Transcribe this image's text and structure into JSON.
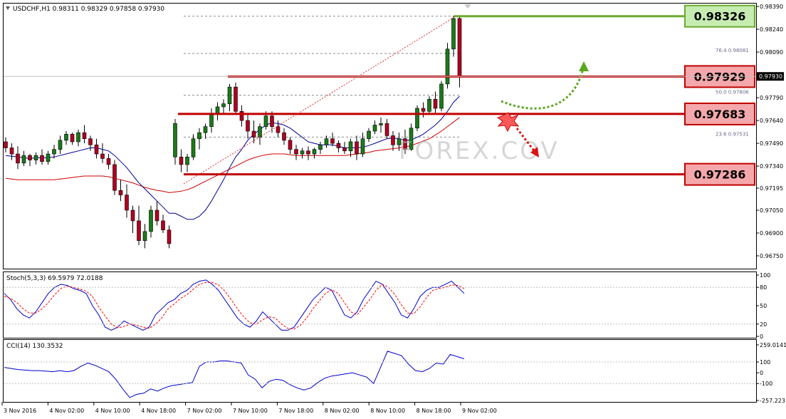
{
  "chart_data": [
    {
      "type": "candlestick",
      "header": "USDCHF,H1  0.98311 0.98329 0.97858 0.97930",
      "yaxis_ticks": [
        "0.98390",
        "0.98240",
        "0.98090",
        "0.97940",
        "0.97790",
        "0.97640",
        "0.97490",
        "0.97340",
        "0.97195",
        "0.97050",
        "0.96900",
        "0.96750"
      ],
      "ylim": [
        0.96675,
        0.98395
      ],
      "xaxis_ticks": [
        "3 Nov 2016",
        "4 Nov 02:00",
        "4 Nov 10:00",
        "4 Nov 18:00",
        "7 Nov 02:00",
        "7 Nov 10:00",
        "7 Nov 18:00",
        "8 Nov 02:00",
        "8 Nov 10:00",
        "8 Nov 18:00",
        "9 Nov 02:00"
      ],
      "current_price": "0.97930",
      "candles": [
        [
          0.975,
          0.9753,
          0.9743,
          0.9746
        ],
        [
          0.9746,
          0.9749,
          0.9738,
          0.9742
        ],
        [
          0.9742,
          0.9747,
          0.9732,
          0.9736
        ],
        [
          0.9736,
          0.9744,
          0.9734,
          0.9741
        ],
        [
          0.9741,
          0.9742,
          0.9734,
          0.9738
        ],
        [
          0.9738,
          0.9743,
          0.9735,
          0.9741
        ],
        [
          0.9741,
          0.9745,
          0.9735,
          0.9737
        ],
        [
          0.9737,
          0.9744,
          0.9735,
          0.9742
        ],
        [
          0.9742,
          0.9748,
          0.9739,
          0.9745
        ],
        [
          0.9745,
          0.9754,
          0.9742,
          0.9751
        ],
        [
          0.9751,
          0.9757,
          0.9748,
          0.9755
        ],
        [
          0.9755,
          0.9756,
          0.9748,
          0.975
        ],
        [
          0.975,
          0.9758,
          0.9747,
          0.9756
        ],
        [
          0.9756,
          0.9761,
          0.9749,
          0.9752
        ],
        [
          0.9752,
          0.9754,
          0.9744,
          0.9748
        ],
        [
          0.9748,
          0.9752,
          0.9739,
          0.9742
        ],
        [
          0.9742,
          0.9749,
          0.9736,
          0.9739
        ],
        [
          0.9739,
          0.9742,
          0.9732,
          0.9735
        ],
        [
          0.9735,
          0.9738,
          0.9715,
          0.9718
        ],
        [
          0.9718,
          0.9725,
          0.9711,
          0.9715
        ],
        [
          0.9715,
          0.9722,
          0.97,
          0.9705
        ],
        [
          0.9705,
          0.9708,
          0.969,
          0.9698
        ],
        [
          0.9698,
          0.9708,
          0.9682,
          0.9685
        ],
        [
          0.9685,
          0.9696,
          0.968,
          0.9691
        ],
        [
          0.9691,
          0.9708,
          0.9687,
          0.9705
        ],
        [
          0.9705,
          0.9711,
          0.9695,
          0.9698
        ],
        [
          0.9698,
          0.9702,
          0.969,
          0.9692
        ],
        [
          0.9692,
          0.9695,
          0.968,
          0.9683
        ],
        [
          0.974,
          0.9765,
          0.9735,
          0.9762
        ],
        [
          0.974,
          0.9745,
          0.973,
          0.9735
        ],
        [
          0.9735,
          0.9742,
          0.973,
          0.974
        ],
        [
          0.974,
          0.9755,
          0.9738,
          0.9752
        ],
        [
          0.9752,
          0.9759,
          0.9745,
          0.9756
        ],
        [
          0.9756,
          0.9762,
          0.9752,
          0.976
        ],
        [
          0.976,
          0.9772,
          0.9756,
          0.9768
        ],
        [
          0.9768,
          0.9776,
          0.9764,
          0.9773
        ],
        [
          0.9773,
          0.9778,
          0.9768,
          0.9775
        ],
        [
          0.9775,
          0.9788,
          0.977,
          0.9786
        ],
        [
          0.9786,
          0.9789,
          0.9768,
          0.977
        ],
        [
          0.977,
          0.9774,
          0.976,
          0.9764
        ],
        [
          0.9764,
          0.9768,
          0.9752,
          0.9757
        ],
        [
          0.9757,
          0.9764,
          0.9749,
          0.9753
        ],
        [
          0.9753,
          0.9762,
          0.9748,
          0.976
        ],
        [
          0.976,
          0.977,
          0.9758,
          0.9767
        ],
        [
          0.9767,
          0.977,
          0.9756,
          0.976
        ],
        [
          0.976,
          0.9764,
          0.9753,
          0.9756
        ],
        [
          0.9756,
          0.9759,
          0.9748,
          0.9751
        ],
        [
          0.9751,
          0.9753,
          0.9742,
          0.9745
        ],
        [
          0.9745,
          0.9748,
          0.9738,
          0.9742
        ],
        [
          0.9742,
          0.9746,
          0.9739,
          0.9744
        ],
        [
          0.9744,
          0.9747,
          0.9738,
          0.9742
        ],
        [
          0.9742,
          0.9746,
          0.9739,
          0.9745
        ],
        [
          0.9745,
          0.975,
          0.9742,
          0.9748
        ],
        [
          0.9748,
          0.9754,
          0.9746,
          0.9752
        ],
        [
          0.9752,
          0.9756,
          0.9747,
          0.9749
        ],
        [
          0.9749,
          0.9751,
          0.9743,
          0.9746
        ],
        [
          0.9746,
          0.975,
          0.9742,
          0.9744
        ],
        [
          0.9744,
          0.9752,
          0.974,
          0.975
        ],
        [
          0.975,
          0.9754,
          0.9738,
          0.9742
        ],
        [
          0.9742,
          0.9756,
          0.974,
          0.9752
        ],
        [
          0.9752,
          0.9759,
          0.975,
          0.9757
        ],
        [
          0.9757,
          0.9764,
          0.9755,
          0.9761
        ],
        [
          0.9761,
          0.9766,
          0.9756,
          0.9762
        ],
        [
          0.9762,
          0.9765,
          0.9752,
          0.9754
        ],
        [
          0.9754,
          0.9757,
          0.9744,
          0.9748
        ],
        [
          0.9748,
          0.9756,
          0.9744,
          0.9752
        ],
        [
          0.9752,
          0.9758,
          0.9742,
          0.9745
        ],
        [
          0.9745,
          0.9762,
          0.9744,
          0.9759
        ],
        [
          0.9759,
          0.9774,
          0.9757,
          0.9772
        ],
        [
          0.9772,
          0.9776,
          0.9766,
          0.977
        ],
        [
          0.977,
          0.978,
          0.9768,
          0.9778
        ],
        [
          0.9778,
          0.9783,
          0.9768,
          0.9772
        ],
        [
          0.9772,
          0.979,
          0.977,
          0.9788
        ],
        [
          0.9788,
          0.9815,
          0.9785,
          0.9811
        ],
        [
          0.9811,
          0.98329,
          0.9806,
          0.98311
        ],
        [
          0.98311,
          0.98329,
          0.97858,
          0.9793
        ]
      ],
      "blue_ma": [
        0.9741,
        0.97405,
        0.974,
        0.97395,
        0.9739,
        0.97395,
        0.97395,
        0.97395,
        0.974,
        0.9741,
        0.9742,
        0.9743,
        0.9744,
        0.9745,
        0.9746,
        0.9746,
        0.9745,
        0.9744,
        0.9741,
        0.9737,
        0.9733,
        0.9728,
        0.9723,
        0.9719,
        0.9715,
        0.9711,
        0.9707,
        0.9703,
        0.9703,
        0.9701,
        0.9699,
        0.9699,
        0.9701,
        0.9705,
        0.9711,
        0.9718,
        0.9725,
        0.9733,
        0.974,
        0.9745,
        0.9751,
        0.9755,
        0.9758,
        0.9761,
        0.97625,
        0.9762,
        0.9761,
        0.9759,
        0.9756,
        0.9753,
        0.975,
        0.9749,
        0.9748,
        0.9748,
        0.9748,
        0.9747,
        0.9746,
        0.9746,
        0.9746,
        0.97465,
        0.97475,
        0.9749,
        0.97505,
        0.9752,
        0.97525,
        0.9752,
        0.9751,
        0.9751,
        0.9753,
        0.9755,
        0.9758,
        0.9761,
        0.9765,
        0.977,
        0.9776,
        0.978
      ],
      "red_ma": [
        0.9726,
        0.97255,
        0.9725,
        0.9725,
        0.9725,
        0.9725,
        0.9725,
        0.9725,
        0.9725,
        0.97255,
        0.9726,
        0.97265,
        0.9727,
        0.97275,
        0.97275,
        0.97275,
        0.97275,
        0.9727,
        0.9726,
        0.9725,
        0.9724,
        0.9723,
        0.97215,
        0.972,
        0.9719,
        0.9718,
        0.97175,
        0.97165,
        0.9717,
        0.97175,
        0.97185,
        0.972,
        0.9722,
        0.9724,
        0.9726,
        0.9728,
        0.973,
        0.9732,
        0.9734,
        0.9736,
        0.9738,
        0.97395,
        0.97405,
        0.97415,
        0.9742,
        0.9742,
        0.9742,
        0.97415,
        0.9741,
        0.9741,
        0.9741,
        0.9741,
        0.9741,
        0.9741,
        0.9741,
        0.9741,
        0.9741,
        0.97415,
        0.9742,
        0.97425,
        0.9743,
        0.9744,
        0.97445,
        0.9745,
        0.97455,
        0.9746,
        0.97465,
        0.97475,
        0.9749,
        0.97505,
        0.9752,
        0.97545,
        0.9757,
        0.976,
        0.9763,
        0.9766
      ],
      "hlines": [
        {
          "value": 0.98326,
          "label": "0.98326",
          "color": "#6aaa30",
          "label_bg": "#c7ecb1"
        },
        {
          "value": 0.97929,
          "label": "0.97929",
          "color": "#c00000",
          "label_bg": "#f4a8ac"
        },
        {
          "value": 0.97683,
          "label": "0.97683",
          "color": "#c00000",
          "label_bg": "#f4a8ac"
        },
        {
          "value": 0.97286,
          "label": "0.97286",
          "color": "#c00000",
          "label_bg": "#f4a8ac"
        }
      ],
      "fibonacci": [
        {
          "level": "76.4",
          "price": "0.98081",
          "value": 0.98081
        },
        {
          "level": "50.0",
          "price": "0.97806",
          "value": 0.97806
        },
        {
          "level": "23.6",
          "price": "0.97531",
          "value": 0.97531
        }
      ],
      "watermark": "FOREX.COV"
    },
    {
      "type": "line",
      "title": "Stoch(5,3,3) 69.5979 72.0188",
      "yaxis_ticks": [
        "100",
        "80",
        "50",
        "20",
        "0"
      ],
      "ylim": [
        0,
        100
      ],
      "series": [
        {
          "color": "#0000cc",
          "values": [
            70,
            60,
            45,
            35,
            30,
            40,
            55,
            70,
            80,
            85,
            83,
            78,
            75,
            70,
            50,
            35,
            15,
            10,
            15,
            25,
            20,
            15,
            10,
            15,
            35,
            45,
            55,
            60,
            70,
            75,
            85,
            90,
            92,
            85,
            75,
            60,
            45,
            30,
            20,
            15,
            25,
            40,
            30,
            20,
            10,
            10,
            15,
            30,
            45,
            60,
            70,
            80,
            75,
            55,
            35,
            30,
            40,
            60,
            75,
            90,
            85,
            70,
            55,
            35,
            30,
            45,
            65,
            75,
            80,
            80,
            85,
            90,
            80,
            70
          ]
        },
        {
          "color": "#ff0000",
          "dash": "3,2",
          "values": [
            65,
            62,
            55,
            45,
            38,
            38,
            45,
            55,
            68,
            78,
            82,
            80,
            77,
            74,
            65,
            48,
            33,
            20,
            14,
            16,
            20,
            18,
            15,
            13,
            20,
            30,
            45,
            53,
            62,
            68,
            77,
            85,
            88,
            88,
            84,
            74,
            60,
            45,
            32,
            22,
            20,
            27,
            32,
            30,
            20,
            13,
            12,
            18,
            30,
            45,
            58,
            70,
            76,
            70,
            55,
            40,
            35,
            47,
            60,
            75,
            85,
            80,
            68,
            52,
            38,
            37,
            48,
            63,
            75,
            78,
            80,
            84,
            83,
            78
          ]
        }
      ]
    },
    {
      "type": "line",
      "title": "CCI(14) 130.3532",
      "yaxis_ticks": [
        "259.0141",
        "100",
        "0",
        "-100",
        "-257.223"
      ],
      "ylim": [
        -257.223,
        259.0141
      ],
      "series": [
        {
          "color": "#0000cc",
          "values": [
            50,
            40,
            30,
            25,
            20,
            20,
            15,
            10,
            20,
            10,
            20,
            60,
            90,
            70,
            40,
            10,
            -60,
            -150,
            -230,
            -200,
            -190,
            -150,
            -170,
            -140,
            -120,
            -110,
            -100,
            -90,
            60,
            100,
            100,
            110,
            110,
            100,
            90,
            -20,
            -60,
            -140,
            -80,
            -60,
            -70,
            -110,
            -140,
            -160,
            -140,
            -90,
            -50,
            -30,
            -20,
            -10,
            0,
            -20,
            -40,
            -100,
            50,
            200,
            180,
            160,
            80,
            20,
            10,
            40,
            90,
            80,
            170,
            150,
            130
          ]
        }
      ]
    }
  ]
}
